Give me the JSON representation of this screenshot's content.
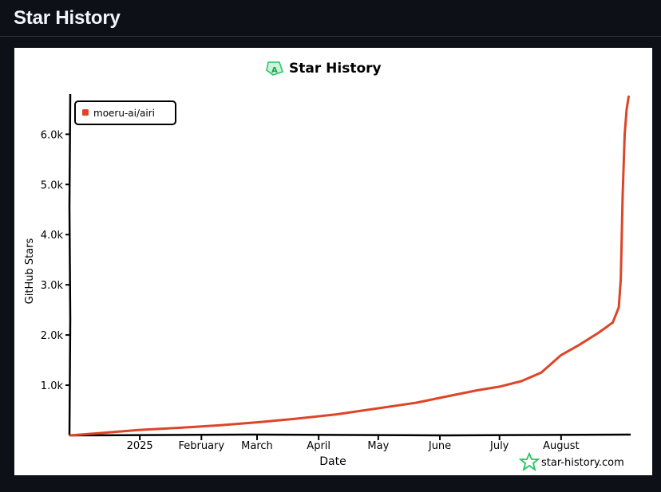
{
  "page": {
    "title": "Star History"
  },
  "chart_data": {
    "type": "line",
    "title": "Star History",
    "xlabel": "Date",
    "ylabel": "GitHub Stars",
    "x_ticks": [
      "2025",
      "February",
      "March",
      "April",
      "May",
      "June",
      "July",
      "August"
    ],
    "y_ticks": [
      "1.0k",
      "2.0k",
      "3.0k",
      "4.0k",
      "5.0k",
      "6.0k"
    ],
    "ylim": [
      0,
      6800
    ],
    "xlim": [
      "2024-11-27",
      "2025-09-05"
    ],
    "legend_position": "top-left",
    "watermark": "star-history.com",
    "colors": {
      "series": "#dd4528",
      "logo_green": "#22c55e"
    },
    "series": [
      {
        "name": "moeru-ai/airi",
        "x": [
          "2024-11-27",
          "2024-12-10",
          "2025-01-01",
          "2025-01-20",
          "2025-02-10",
          "2025-03-01",
          "2025-03-20",
          "2025-04-10",
          "2025-05-01",
          "2025-05-20",
          "2025-06-05",
          "2025-06-20",
          "2025-07-01",
          "2025-07-12",
          "2025-07-22",
          "2025-08-01",
          "2025-08-10",
          "2025-08-20",
          "2025-08-27",
          "2025-08-30",
          "2025-08-31",
          "2025-09-01",
          "2025-09-02",
          "2025-09-03",
          "2025-09-04"
        ],
        "y": [
          0,
          40,
          110,
          150,
          200,
          260,
          330,
          420,
          540,
          650,
          780,
          900,
          970,
          1080,
          1250,
          1600,
          1800,
          2050,
          2250,
          2550,
          3100,
          4800,
          6000,
          6500,
          6750
        ]
      }
    ]
  }
}
